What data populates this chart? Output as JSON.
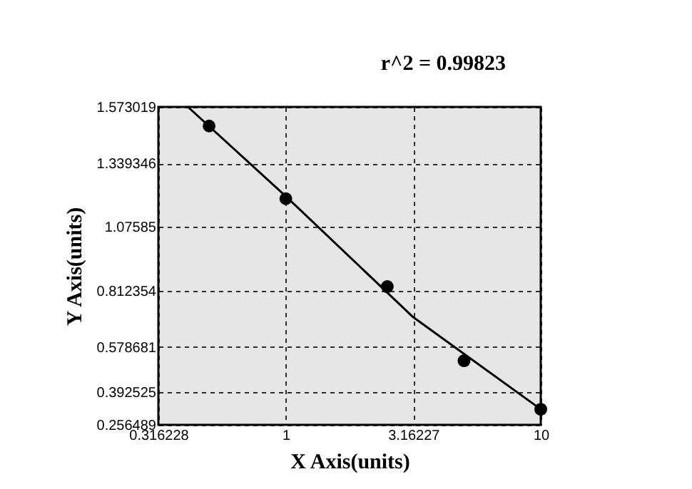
{
  "chart_data": {
    "type": "scatter",
    "title": "r^2 = 0.99823",
    "xlabel": "X Axis(units)",
    "ylabel": "Y Axis(units)",
    "log": "x",
    "xlim": [
      0.316228,
      10
    ],
    "xticks": [
      0.316228,
      1,
      3.16227,
      10
    ],
    "ylim": [
      0.256489,
      1.573019
    ],
    "yticks": [
      0.256489,
      0.392525,
      0.578681,
      0.812354,
      1.07585,
      1.339346,
      1.573019
    ],
    "grid": true,
    "series": [
      {
        "color": "#000000",
        "marker": "circle",
        "x": [
          0.5,
          1,
          2.5,
          5,
          10
        ],
        "values": [
          1.494,
          1.193,
          0.829,
          0.522,
          0.321
        ]
      },
      {
        "type": "line",
        "color": "#000000",
        "line_style": "solid",
        "marker": "none",
        "x": [
          0.413,
          1,
          3.162,
          10
        ],
        "values": [
          1.573,
          1.203,
          0.702,
          0.321
        ]
      }
    ]
  }
}
